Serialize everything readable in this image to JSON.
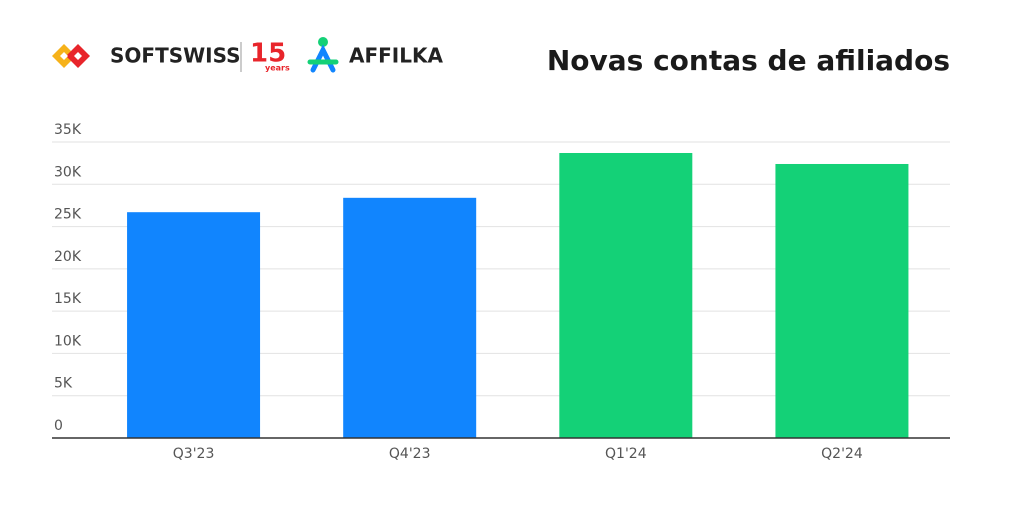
{
  "chart_data": {
    "type": "bar",
    "title": "Novas contas de afiliados",
    "brand_texts": [
      "SOFTSWISS",
      "15",
      "years",
      "AFFILKA"
    ],
    "categories": [
      "Q3'23",
      "Q4'23",
      "Q1'24",
      "Q2'24"
    ],
    "values": [
      26700,
      28400,
      33700,
      32400
    ],
    "colors": [
      "#1185fe",
      "#1185fe",
      "#14d177",
      "#14d177"
    ],
    "ylim": [
      0,
      35000
    ],
    "yticks": [
      0,
      {
        "value": 5000,
        "label": "5K"
      },
      {
        "value": 10000,
        "label": "10K"
      },
      {
        "value": 15000,
        "label": "15K"
      },
      {
        "value": 20000,
        "label": "20K"
      },
      {
        "value": 25000,
        "label": "25K"
      },
      {
        "value": 30000,
        "label": "30K"
      },
      {
        "value": 35000,
        "label": "35K"
      }
    ],
    "grid": true
  }
}
